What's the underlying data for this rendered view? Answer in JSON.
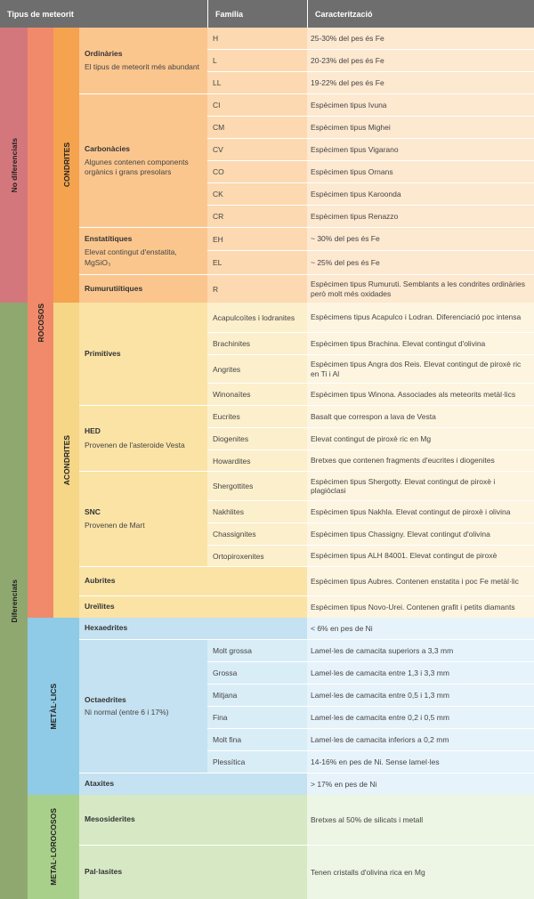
{
  "header": {
    "col1": "Tipus de meteorit",
    "col2": "Família",
    "col3": "Caracterització"
  },
  "level1": {
    "no_diferenciats": "No diferenciats",
    "diferenciats": "Diferenciats"
  },
  "level2": {
    "rocosos": "ROCOSOS",
    "metallics": "METÀL·LICS",
    "metall_rocosos": "METAL·LOROCOSOS"
  },
  "level3": {
    "condrites": "CONDRITES",
    "acondrites": "ACONDRITES"
  },
  "groups": {
    "ordinaries": {
      "title": "Ordinàries",
      "desc": "El tipus de meteorit més abundant"
    },
    "carbonacies": {
      "title": "Carbonàcies",
      "desc": "Algunes contenen components orgànics i grans presolars"
    },
    "enstatitiques": {
      "title": "Enstatítiques",
      "desc": "Elevat contingut d'enstatita, MgSiO₃"
    },
    "rumurutiitiques": {
      "title": "Rumurutiítiques"
    },
    "primitives": {
      "title": "Primitives"
    },
    "hed": {
      "title": "HED",
      "desc": "Provenen de l'asteroide Vesta"
    },
    "snc": {
      "title": "SNC",
      "desc": "Provenen de Mart"
    },
    "aubrites": {
      "title": "Aubrites"
    },
    "ureilites": {
      "title": "Ureïlites"
    },
    "hexaedrites": {
      "title": "Hexaedrites"
    },
    "octaedrites": {
      "title": "Octaedrites",
      "desc": "Ni normal (entre 6 i 17%)"
    },
    "ataxites": {
      "title": "Ataxites"
    },
    "mesosiderites": {
      "title": "Mesosiderites"
    },
    "pallasites": {
      "title": "Pal·lasites"
    }
  },
  "rows": {
    "h": {
      "fam": "H",
      "car": "25-30% del pes és Fe"
    },
    "l": {
      "fam": "L",
      "car": "20-23% del pes és Fe"
    },
    "ll": {
      "fam": "LL",
      "car": "19-22% del pes és Fe"
    },
    "ci": {
      "fam": "CI",
      "car": "Espècimen tipus Ivuna"
    },
    "cm": {
      "fam": "CM",
      "car": "Espècimen tipus Mighei"
    },
    "cv": {
      "fam": "CV",
      "car": "Espècimen tipus Vigarano"
    },
    "co": {
      "fam": "CO",
      "car": "Espècimen tipus Ornans"
    },
    "ck": {
      "fam": "CK",
      "car": "Espècimen tipus Karoonda"
    },
    "cr": {
      "fam": "CR",
      "car": "Espècimen tipus Renazzo"
    },
    "eh": {
      "fam": "EH",
      "car": "~ 30% del pes és Fe"
    },
    "el": {
      "fam": "EL",
      "car": "~ 25% del pes és Fe"
    },
    "r": {
      "fam": "R",
      "car": "Espècimen tipus Rumuruti. Semblants a les condrites ordinàries però molt més oxidades"
    },
    "acapulcoites": {
      "fam": "Acapulcoïtes i lodranites",
      "car": "Espècimens tipus Acapulco i Lodran. Diferenciació poc intensa"
    },
    "brachinites": {
      "fam": "Brachinites",
      "car": "Espècimen tipus Brachina. Elevat contingut d'olivina"
    },
    "angrites": {
      "fam": "Angrites",
      "car": "Espècimen tipus Angra dos Reis. Elevat contingut de piroxè ric en Ti i Al"
    },
    "winonaites": {
      "fam": "Winonaïtes",
      "car": "Espècimen tipus Winona. Associades als meteorits metàl·lics"
    },
    "eucrites": {
      "fam": "Eucrites",
      "car": "Basalt que correspon a lava de Vesta"
    },
    "diogenites": {
      "fam": "Diogenites",
      "car": "Elevat contingut de piroxè ric en Mg"
    },
    "howardites": {
      "fam": "Howardites",
      "car": "Bretxes que contenen fragments d'eucrites i diogenites"
    },
    "shergottites": {
      "fam": "Shergottites",
      "car": "Espècimen tipus Shergotty. Elevat contingut de piroxè i plagiòclasi"
    },
    "nakhlites": {
      "fam": "Nakhlites",
      "car": "Espècimen tipus Nakhla. Elevat contingut de piroxè i olivina"
    },
    "chassignites": {
      "fam": "Chassignites",
      "car": "Espècimen tipus Chassigny. Elevat contingut d'olivina"
    },
    "ortopiroxenites": {
      "fam": "Ortopiroxenites",
      "car": "Espècimen tipus ALH 84001. Elevat contingut de piroxè"
    },
    "aubrites": {
      "car": "Espècimen tipus Aubres. Contenen enstatita i poc Fe metàl·lic"
    },
    "ureilites": {
      "car": "Espècimen tipus Novo-Urei. Contenen grafit i petits diamants"
    },
    "hexaedrites": {
      "car": "< 6% en pes de Ni"
    },
    "molt_grossa": {
      "fam": "Molt grossa",
      "car": "Lamel·les de camacita superiors a 3,3 mm"
    },
    "grossa": {
      "fam": "Grossa",
      "car": "Lamel·les de camacita entre 1,3 i 3,3 mm"
    },
    "mitjana": {
      "fam": "Mitjana",
      "car": "Lamel·les de camacita entre 0,5 i 1,3 mm"
    },
    "fina": {
      "fam": "Fina",
      "car": "Lamel·les de camacita entre 0,2 i 0,5 mm"
    },
    "molt_fina": {
      "fam": "Molt fina",
      "car": "Lamel·les de camacita inferiors a 0,2 mm"
    },
    "plessitica": {
      "fam": "Plessítica",
      "car": "14-16% en pes de Ni. Sense lamel·les"
    },
    "ataxites": {
      "car": "> 17% en pes de Ni"
    },
    "mesosiderites": {
      "car": "Bretxes al 50% de silicats i metall"
    },
    "pallasites": {
      "car": "Tenen cristalls d'olivina rica en Mg"
    }
  },
  "colors": {
    "no_diferenciats": "#d4777c",
    "diferenciats": "#8fa870",
    "rocosos": "#f08a6a",
    "metallics": "#8fcbe6",
    "metall_rocosos": "#a9d08a",
    "condrites": "#f5a34e",
    "acondrites": "#f6d687",
    "condrites_light": "#fbc68e",
    "acondrites_light": "#fae3a5",
    "metallics_light": "#c4e2f1",
    "metall_rocosos_light": "#d6e9c4"
  }
}
